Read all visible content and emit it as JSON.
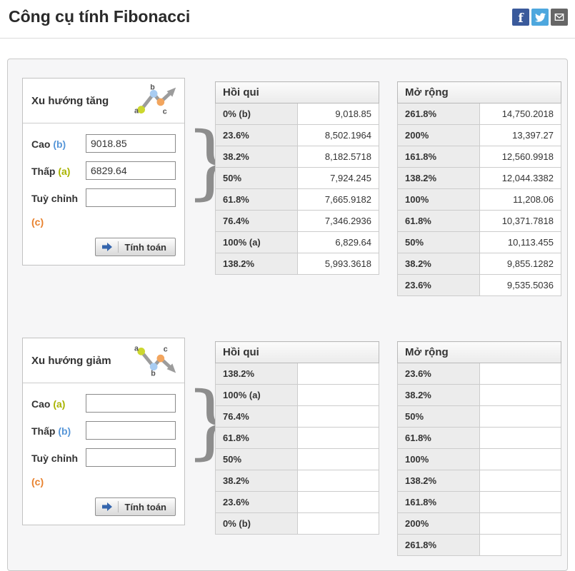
{
  "header": {
    "title": "Công cụ tính Fibonacci",
    "social_icons": [
      {
        "name": "facebook",
        "color": "#3a5a9b"
      },
      {
        "name": "twitter",
        "color": "#4da7de"
      },
      {
        "name": "email",
        "color": "#666666"
      }
    ]
  },
  "shared": {
    "high_label": "Cao",
    "low_label": "Thấp",
    "custom_label": "Tuỳ chỉnh",
    "calculate_label": "Tính toán",
    "retracement_title": "Hồi qui",
    "extension_title": "Mở rộng",
    "brace": "}",
    "point_colors": {
      "a": "#a9b400",
      "b": "#5696d8",
      "c": "#e8812d"
    }
  },
  "uptrend": {
    "section_title": "Xu hướng tăng",
    "high_point": "(b)",
    "high_value": "9018.85",
    "low_point": "(a)",
    "low_value": "6829.64",
    "custom_point": "(c)",
    "custom_value": "",
    "retracement_rows": [
      {
        "label": "0% (b)",
        "value": "9,018.85"
      },
      {
        "label": "23.6%",
        "value": "8,502.1964"
      },
      {
        "label": "38.2%",
        "value": "8,182.5718"
      },
      {
        "label": "50%",
        "value": "7,924.245"
      },
      {
        "label": "61.8%",
        "value": "7,665.9182"
      },
      {
        "label": "76.4%",
        "value": "7,346.2936"
      },
      {
        "label": "100% (a)",
        "value": "6,829.64"
      },
      {
        "label": "138.2%",
        "value": "5,993.3618"
      }
    ],
    "extension_rows": [
      {
        "label": "261.8%",
        "value": "14,750.2018"
      },
      {
        "label": "200%",
        "value": "13,397.27"
      },
      {
        "label": "161.8%",
        "value": "12,560.9918"
      },
      {
        "label": "138.2%",
        "value": "12,044.3382"
      },
      {
        "label": "100%",
        "value": "11,208.06"
      },
      {
        "label": "61.8%",
        "value": "10,371.7818"
      },
      {
        "label": "50%",
        "value": "10,113.455"
      },
      {
        "label": "38.2%",
        "value": "9,855.1282"
      },
      {
        "label": "23.6%",
        "value": "9,535.5036"
      }
    ]
  },
  "downtrend": {
    "section_title": "Xu hướng giảm",
    "high_point": "(a)",
    "high_value": "",
    "low_point": "(b)",
    "low_value": "",
    "custom_point": "(c)",
    "custom_value": "",
    "retracement_rows": [
      {
        "label": "138.2%",
        "value": ""
      },
      {
        "label": "100% (a)",
        "value": ""
      },
      {
        "label": "76.4%",
        "value": ""
      },
      {
        "label": "61.8%",
        "value": ""
      },
      {
        "label": "50%",
        "value": ""
      },
      {
        "label": "38.2%",
        "value": ""
      },
      {
        "label": "23.6%",
        "value": ""
      },
      {
        "label": "0% (b)",
        "value": ""
      }
    ],
    "extension_rows": [
      {
        "label": "23.6%",
        "value": ""
      },
      {
        "label": "38.2%",
        "value": ""
      },
      {
        "label": "50%",
        "value": ""
      },
      {
        "label": "61.8%",
        "value": ""
      },
      {
        "label": "100%",
        "value": ""
      },
      {
        "label": "138.2%",
        "value": ""
      },
      {
        "label": "161.8%",
        "value": ""
      },
      {
        "label": "200%",
        "value": ""
      },
      {
        "label": "261.8%",
        "value": ""
      }
    ]
  }
}
